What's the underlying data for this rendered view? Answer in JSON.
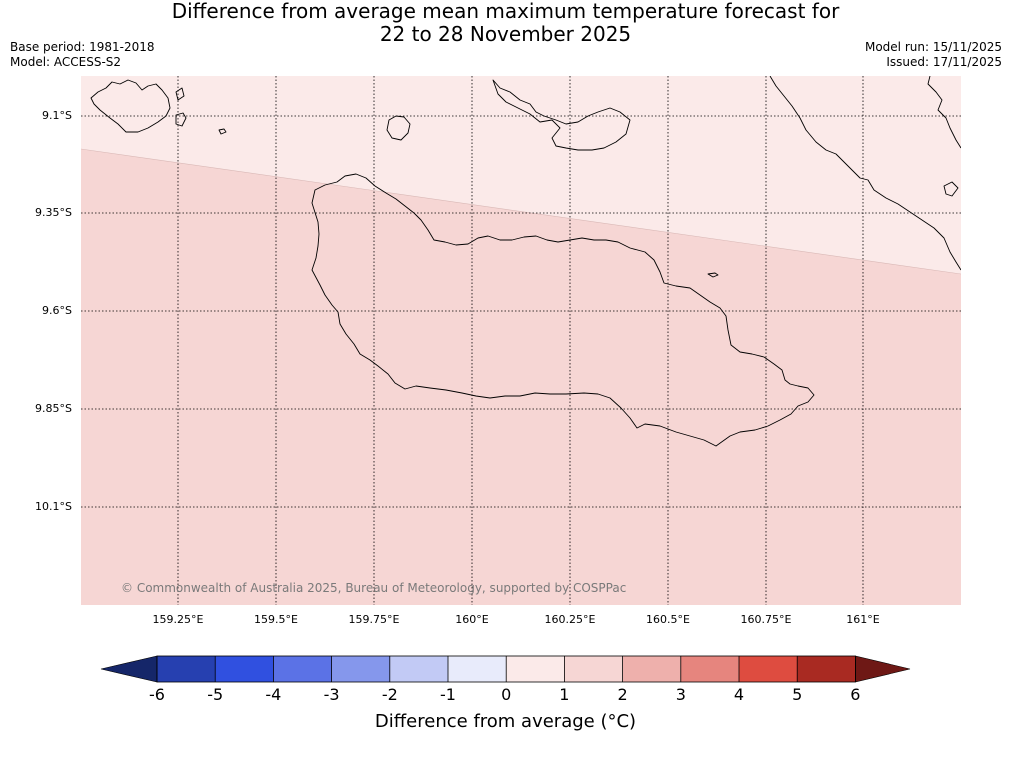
{
  "title": {
    "line1": "Difference from average mean maximum temperature forecast for",
    "line2": "22 to 28 November 2025"
  },
  "meta_left": {
    "base_period": "Base period: 1981-2018",
    "model": "Model: ACCESS-S2"
  },
  "meta_right": {
    "model_run": "Model run: 15/11/2025",
    "issued": "Issued: 17/11/2025"
  },
  "map": {
    "latitude_labels": [
      "9.1°S",
      "9.35°S",
      "9.6°S",
      "9.85°S",
      "10.1°S"
    ],
    "longitude_labels": [
      "159.25°E",
      "159.5°E",
      "159.75°E",
      "160°E",
      "160.25°E",
      "160.5°E",
      "160.75°E",
      "161°E"
    ],
    "credit": "© Commonwealth of Australia 2025, Bureau of Meteorology, supported by COSPPac",
    "fill_colors": {
      "band_0_to_1": "#fbeae9",
      "band_1_to_2": "#f6d6d4"
    },
    "region_classes": [
      "0 to 1",
      "1 to 2"
    ]
  },
  "colorbar": {
    "title": "Difference from average (°C)",
    "ticks": [
      "-6",
      "-5",
      "-4",
      "-3",
      "-2",
      "-1",
      "0",
      "1",
      "2",
      "3",
      "4",
      "5",
      "6"
    ],
    "colors": [
      "#152669",
      "#2640b0",
      "#3050e0",
      "#5b72e6",
      "#8597ec",
      "#c2caf5",
      "#e8ebfb",
      "#fbeae9",
      "#f6d6d4",
      "#eeb0ac",
      "#e6857e",
      "#de4c40",
      "#a92a22",
      "#6e1815"
    ]
  }
}
